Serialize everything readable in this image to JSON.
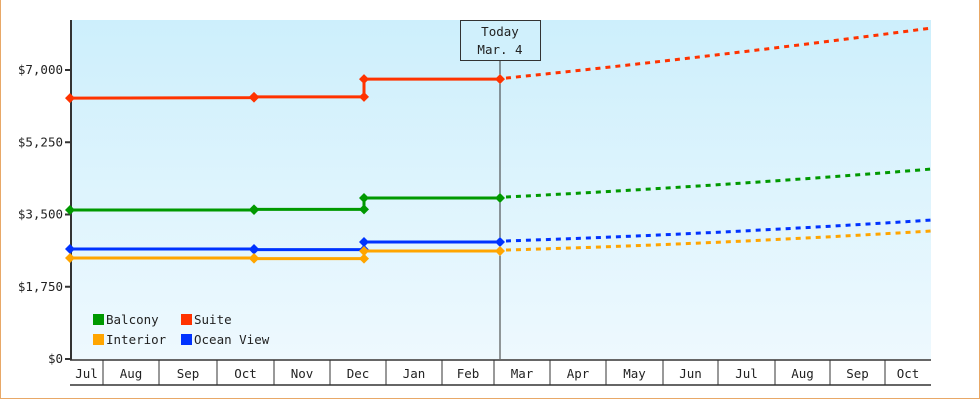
{
  "chart_data": {
    "type": "line",
    "title": "",
    "xlabel": "",
    "ylabel": "",
    "ylim": [
      0,
      8100
    ],
    "y_ticks": [
      "$0",
      "$1,750",
      "$3,500",
      "$5,250",
      "$7,000"
    ],
    "y_tick_values": [
      0,
      1750,
      3500,
      5250,
      7000
    ],
    "categories": [
      "Jul",
      "Aug",
      "Sep",
      "Oct",
      "Nov",
      "Dec",
      "Jan",
      "Feb",
      "Mar",
      "Apr",
      "May",
      "Jun",
      "Jul",
      "Aug",
      "Sep",
      "Oct"
    ],
    "today_marker": {
      "line1": "Today",
      "line2": "Mar. 4"
    },
    "legend": {
      "position": "bottom-left inside plot",
      "entries": [
        {
          "name": "Balcony",
          "color": "#009900"
        },
        {
          "name": "Suite",
          "color": "#ff3300"
        },
        {
          "name": "Interior",
          "color": "#ffa500"
        },
        {
          "name": "Ocean View",
          "color": "#0033ff"
        }
      ]
    },
    "grid": false,
    "series": [
      {
        "name": "Suite",
        "color": "#ff3300",
        "historical": [
          {
            "date": "Jul 1",
            "value": 6320
          },
          {
            "date": "Oct 1",
            "value": 6330
          },
          {
            "date": "Oct 1",
            "value": 6350
          },
          {
            "date": "Dec 1",
            "value": 6350
          },
          {
            "date": "Dec 1",
            "value": 6780
          },
          {
            "date": "Mar 4",
            "value": 6780
          }
        ],
        "forecast": [
          {
            "date": "Mar 4",
            "value": 6780
          },
          {
            "date": "Oct 31",
            "value": 8015
          }
        ]
      },
      {
        "name": "Balcony",
        "color": "#009900",
        "historical": [
          {
            "date": "Jul 1",
            "value": 3610
          },
          {
            "date": "Oct 1",
            "value": 3610
          },
          {
            "date": "Oct 1",
            "value": 3625
          },
          {
            "date": "Dec 1",
            "value": 3625
          },
          {
            "date": "Dec 1",
            "value": 3900
          },
          {
            "date": "Mar 4",
            "value": 3900
          }
        ],
        "forecast": [
          {
            "date": "Mar 4",
            "value": 3900
          },
          {
            "date": "Oct 31",
            "value": 4600
          }
        ]
      },
      {
        "name": "Ocean View",
        "color": "#0033ff",
        "historical": [
          {
            "date": "Jul 1",
            "value": 2665
          },
          {
            "date": "Oct 1",
            "value": 2665
          },
          {
            "date": "Oct 1",
            "value": 2650
          },
          {
            "date": "Dec 1",
            "value": 2650
          },
          {
            "date": "Dec 1",
            "value": 2835
          },
          {
            "date": "Mar 4",
            "value": 2835
          }
        ],
        "forecast": [
          {
            "date": "Mar 4",
            "value": 2835
          },
          {
            "date": "Oct 31",
            "value": 3365
          }
        ]
      },
      {
        "name": "Interior",
        "color": "#ffa500",
        "historical": [
          {
            "date": "Jul 1",
            "value": 2445
          },
          {
            "date": "Oct 1",
            "value": 2445
          },
          {
            "date": "Oct 1",
            "value": 2430
          },
          {
            "date": "Dec 1",
            "value": 2430
          },
          {
            "date": "Dec 1",
            "value": 2615
          },
          {
            "date": "Mar 4",
            "value": 2615
          }
        ],
        "forecast": [
          {
            "date": "Mar 4",
            "value": 2615
          },
          {
            "date": "Oct 31",
            "value": 3100
          }
        ]
      }
    ]
  },
  "colors": {
    "frame_border": "#e8a867",
    "plot_bg_top": "#cdeffc",
    "plot_bg_bottom": "#eef9fe",
    "axis": "#333333"
  }
}
